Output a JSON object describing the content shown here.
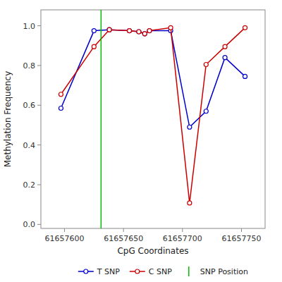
{
  "chart_data": {
    "type": "line",
    "xlabel": "CpG Coordinates",
    "ylabel": "Methylation Frequency",
    "x": [
      61657597,
      61657625,
      61657638,
      61657655,
      61657663,
      61657668,
      61657672,
      61657690,
      61657706,
      61657720,
      61657736,
      61657753
    ],
    "series": [
      {
        "name": "T SNP",
        "color": "#0000cc",
        "marker": "circle",
        "values": [
          0.585,
          0.975,
          0.98,
          0.975,
          0.97,
          0.96,
          0.975,
          0.975,
          0.49,
          0.57,
          0.84,
          0.745
        ]
      },
      {
        "name": "C SNP",
        "color": "#cc0000",
        "marker": "circle",
        "values": [
          0.655,
          0.895,
          0.98,
          0.975,
          0.97,
          0.96,
          0.975,
          0.99,
          0.108,
          0.805,
          0.895,
          0.99
        ]
      },
      {
        "name": "SNP Position",
        "color": "#00bb00",
        "type": "vline",
        "x": 61657631
      }
    ],
    "xlim": [
      61657580,
      61657770
    ],
    "xticks": [
      61657600,
      61657650,
      61657700,
      61657750
    ],
    "ylim": [
      -0.02,
      1.08
    ],
    "yticks": [
      {
        "value": 0.0,
        "label": "0.0"
      },
      0.2,
      0.4,
      0.6,
      0.8,
      {
        "value": 1.0,
        "label": "1.0"
      }
    ],
    "grid": false,
    "legend": "lower right"
  }
}
